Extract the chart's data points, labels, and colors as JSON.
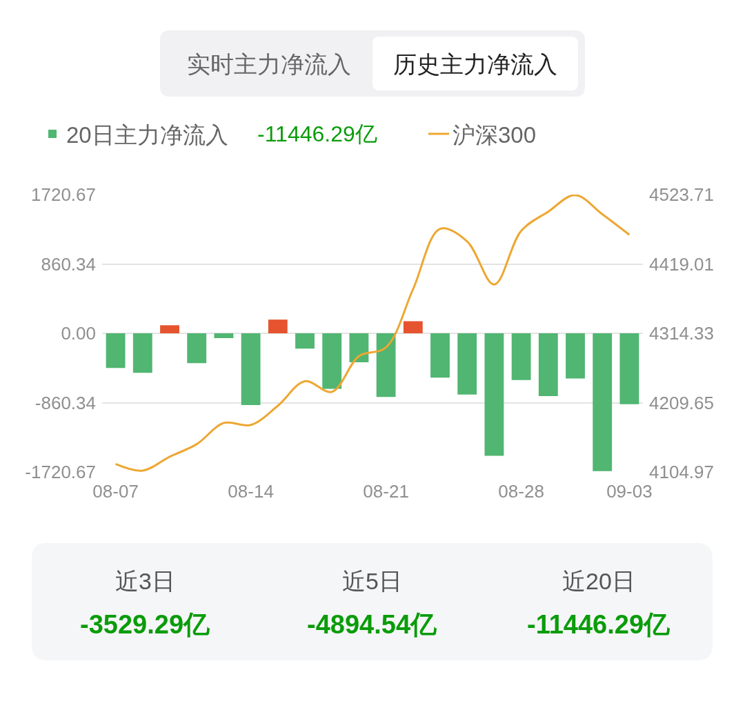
{
  "chart_data": {
    "type": "bar",
    "categories": [
      "08-07",
      null,
      null,
      null,
      null,
      "08-14",
      null,
      null,
      null,
      null,
      "08-21",
      null,
      null,
      null,
      null,
      "08-28",
      null,
      null,
      null,
      "09-03"
    ],
    "series": [
      {
        "name": "20日主力净流入",
        "colors": [
          "#50b672",
          "#50b672",
          "#e5542e",
          "#50b672",
          "#50b672",
          "#50b672",
          "#e5542e",
          "#50b672",
          "#50b672",
          "#50b672",
          "#50b672",
          "#e5542e",
          "#50b672",
          "#50b672",
          "#50b672",
          "#50b672",
          "#50b672",
          "#50b672",
          "#50b672",
          "#50b672"
        ],
        "values": [
          -430,
          -490,
          100,
          -370,
          -60,
          -890,
          170,
          -190,
          -690,
          -360,
          -790,
          150,
          -550,
          -760,
          -1520,
          -580,
          -780,
          -560,
          -1710,
          -880
        ]
      },
      {
        "name": "沪深300",
        "type": "line",
        "axis": "y2",
        "color": "#eda732",
        "values": [
          4117,
          4107,
          4128,
          4147,
          4179,
          4176,
          4205,
          4242,
          4226,
          4280,
          4293,
          4381,
          4472,
          4453,
          4388,
          4469,
          4498,
          4523,
          4494,
          4463
        ]
      }
    ],
    "ylim": [
      -1720.67,
      1720.67
    ],
    "yticks": [
      -1720.67,
      -860.34,
      {
        "value": 0,
        "label": "0.00"
      },
      860.34,
      1720.67
    ],
    "y2lim": [
      4104.97,
      4523.71
    ],
    "y2ticks": [
      4104.97,
      4209.65,
      4314.33,
      4419.01,
      4523.71
    ],
    "grid": "y",
    "legend": "top left",
    "marker": "none",
    "line_style": "solid",
    "annotations": [
      "实时主力净流入",
      "历史主力净流入",
      "-11446.29亿",
      "近3日",
      "-3529.29亿",
      "近5日",
      "-4894.54亿",
      "近20日",
      "-11446.29亿"
    ]
  }
}
